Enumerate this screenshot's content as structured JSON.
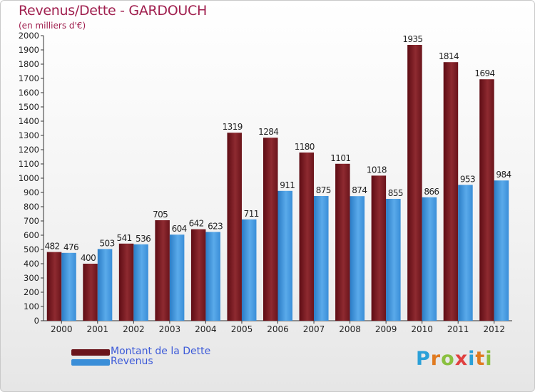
{
  "chart_data": {
    "type": "bar",
    "title": "Revenus/Dette - GARDOUCH",
    "subtitle": "(en milliers d'€)",
    "categories": [
      "2000",
      "2001",
      "2002",
      "2003",
      "2004",
      "2005",
      "2006",
      "2007",
      "2008",
      "2009",
      "2010",
      "2011",
      "2012"
    ],
    "series": [
      {
        "name": "Montant de la Dette",
        "values": [
          482,
          400,
          541,
          705,
          642,
          1319,
          1284,
          1180,
          1101,
          1018,
          1935,
          1814,
          1694
        ]
      },
      {
        "name": "Revenus",
        "values": [
          476,
          503,
          536,
          604,
          623,
          711,
          911,
          875,
          874,
          855,
          866,
          953,
          984
        ]
      }
    ],
    "ylim": [
      0,
      2000
    ],
    "ytick_step": 100,
    "grid": false,
    "legend_position": "bottom-left",
    "colors": {
      "dette": "#7a1820",
      "revenus": "#3a8ed8",
      "title": "#a0204f",
      "legend_text": "#3c5ad8"
    }
  },
  "logo": {
    "letters": [
      "P",
      "r",
      "o",
      "x",
      "i",
      "t",
      "i"
    ],
    "colors": [
      "#2aa0d8",
      "#e07a20",
      "#8ac040",
      "#e04040",
      "#2aa0d8",
      "#e07a20",
      "#8ac040"
    ]
  }
}
